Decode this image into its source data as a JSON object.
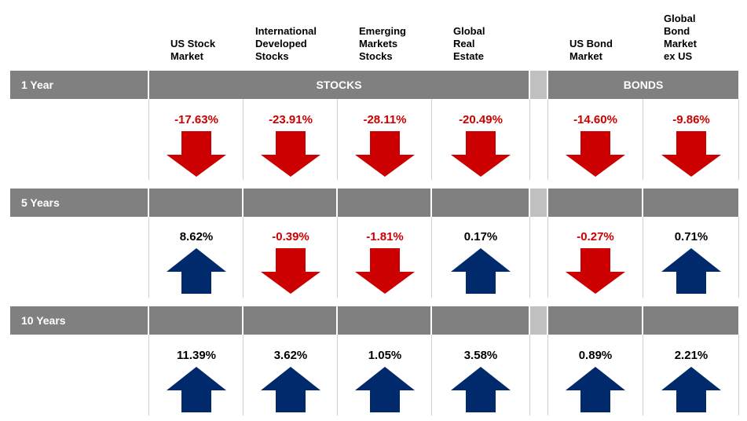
{
  "colors": {
    "band": "#808080",
    "separator": "#c0c0c0",
    "down": "#cc0000",
    "up": "#002a6c"
  },
  "columns": [
    {
      "label": "US Stock\nMarket"
    },
    {
      "label": "International\nDeveloped\nStocks"
    },
    {
      "label": "Emerging\nMarkets\nStocks"
    },
    {
      "label": "Global\nReal\nEstate"
    },
    {
      "label": "US Bond\nMarket"
    },
    {
      "label": "Global\nBond\nMarket\nex US"
    }
  ],
  "groups": {
    "stocks": "STOCKS",
    "bonds": "BONDS"
  },
  "rows": [
    {
      "label": "1 Year",
      "cells": [
        {
          "value": "-17.63%",
          "direction": "down"
        },
        {
          "value": "-23.91%",
          "direction": "down"
        },
        {
          "value": "-28.11%",
          "direction": "down"
        },
        {
          "value": "-20.49%",
          "direction": "down"
        },
        {
          "value": "-14.60%",
          "direction": "down"
        },
        {
          "value": "-9.86%",
          "direction": "down"
        }
      ]
    },
    {
      "label": "5 Years",
      "cells": [
        {
          "value": "8.62%",
          "direction": "up"
        },
        {
          "value": "-0.39%",
          "direction": "down"
        },
        {
          "value": "-1.81%",
          "direction": "down"
        },
        {
          "value": "0.17%",
          "direction": "up"
        },
        {
          "value": "-0.27%",
          "direction": "down"
        },
        {
          "value": "0.71%",
          "direction": "up"
        }
      ]
    },
    {
      "label": "10 Years",
      "cells": [
        {
          "value": "11.39%",
          "direction": "up"
        },
        {
          "value": "3.62%",
          "direction": "up"
        },
        {
          "value": "1.05%",
          "direction": "up"
        },
        {
          "value": "3.58%",
          "direction": "up"
        },
        {
          "value": "0.89%",
          "direction": "up"
        },
        {
          "value": "2.21%",
          "direction": "up"
        }
      ]
    }
  ]
}
